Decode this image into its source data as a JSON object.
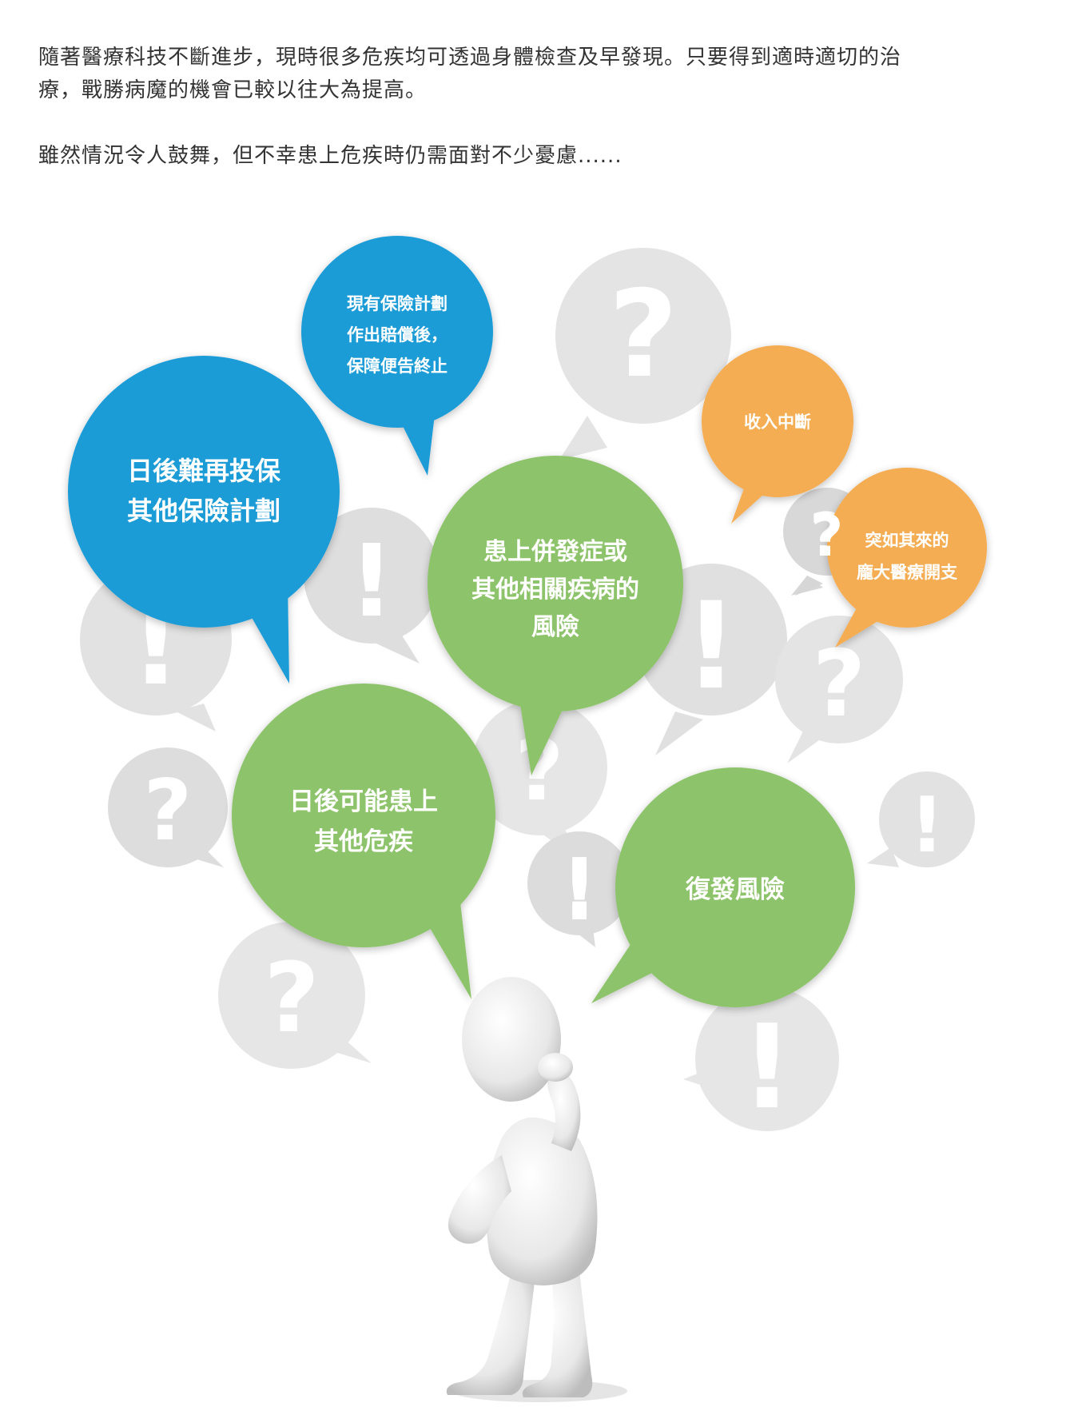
{
  "intro": {
    "paragraph_1_line_1": "隨著醫療科技不斷進步，現時很多危疾均可透過身體檢查及早發現。只要得到適時適切的治",
    "paragraph_1_line_2": "療，戰勝病魔的機會已較以往大為提高。",
    "paragraph_2": "雖然情況令人鼓舞，但不幸患上危疾時仍需面對不少憂慮......"
  },
  "bubbles": {
    "claim_termination": {
      "color": "#1e9cd7",
      "lines": [
        "現有保險計劃",
        "作出賠償後，",
        "保障便告終止"
      ]
    },
    "reinsure_difficulty": {
      "color": "#1e9cd7",
      "lines": [
        "日後難再投保",
        "其他保險計劃"
      ]
    },
    "income_interruption": {
      "color": "#f5ad52",
      "lines": [
        "收入中斷"
      ]
    },
    "unexpected_expenses": {
      "color": "#f5ad52",
      "lines": [
        "突如其來的",
        "龐大醫療開支"
      ]
    },
    "complications_risk": {
      "color": "#8dc36a",
      "lines": [
        "患上併發症或",
        "其他相關疾病的",
        "風險"
      ]
    },
    "other_critical_illness": {
      "color": "#8dc36a",
      "lines": [
        "日後可能患上",
        "其他危疾"
      ]
    },
    "recurrence_risk": {
      "color": "#8dc36a",
      "lines": [
        "復發風險"
      ]
    }
  },
  "background_marks": [
    "?",
    "!",
    "!",
    "?",
    "!",
    "?",
    "?",
    "!",
    "?",
    "!",
    "!",
    "?",
    "?",
    "!"
  ]
}
